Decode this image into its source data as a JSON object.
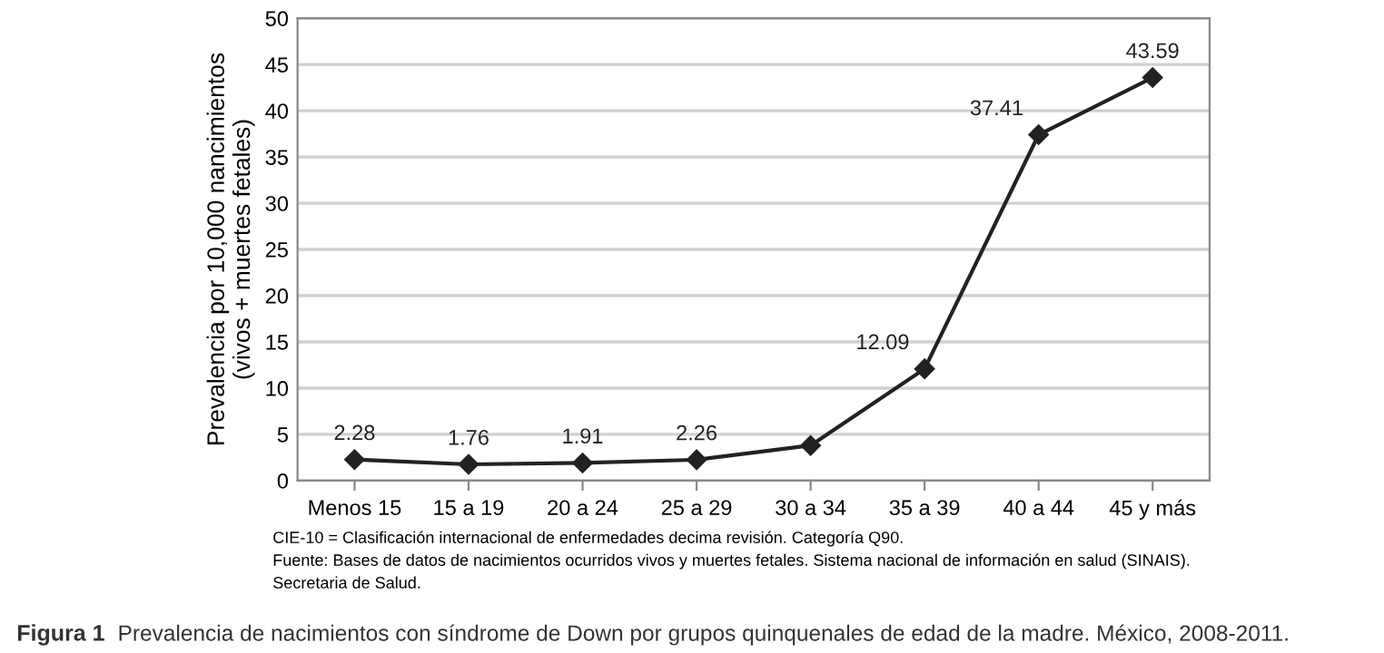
{
  "chart_data": {
    "type": "line",
    "title": "Prevalencia de nacimientos con síndrome de Down por grupos quinquenales de edad de la madre. México, 2008-2011.",
    "ylabel": "Prevalencia por 10,000 nancimientos\n(vivos + muertes fetales)",
    "categories": [
      "Menos 15",
      "15 a 19",
      "20 a 24",
      "25 a 29",
      "30 a 34",
      "35 a 39",
      "40 a 44",
      "45 y más"
    ],
    "series": [
      {
        "color": "#222222",
        "values": [
          2.28,
          1.76,
          1.91,
          2.26,
          3.8,
          12.09,
          37.41,
          43.59
        ],
        "value_labels": [
          "2.28",
          "1.76",
          "1.91",
          "2.26",
          null,
          "12.09",
          "37.41",
          "43.59"
        ]
      }
    ],
    "ylim": [
      0,
      50
    ],
    "yticks": [
      0,
      5,
      10,
      15,
      20,
      25,
      30,
      35,
      40,
      45,
      50
    ],
    "grid": "y",
    "marker": "diamond",
    "line_style": "solid",
    "legend": false,
    "annotations": [
      "CIE-10 = Clasificación internacional de enfermedades decima revisión. Categoría Q90.",
      "Fuente: Bases de datos de nacimientos ocurridos vivos y muertes fetales. Sistema nacional de información en salud (SINAIS).",
      "Secretaria de Salud.",
      "Figura 1"
    ]
  }
}
